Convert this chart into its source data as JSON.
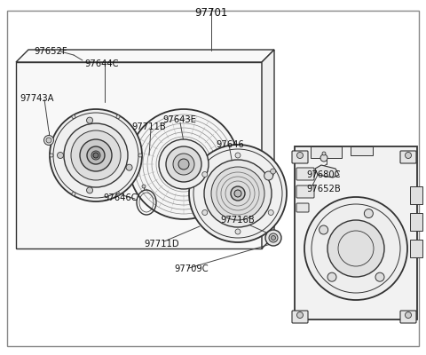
{
  "title": "97701",
  "bg_color": "#ffffff",
  "lc": "#333333",
  "lc2": "#555555",
  "figsize": [
    4.8,
    4.0
  ],
  "dpi": 100,
  "labels": [
    [
      "97701",
      238,
      10,
      "center"
    ],
    [
      "97652F",
      48,
      55,
      "left"
    ],
    [
      "97644C",
      98,
      68,
      "left"
    ],
    [
      "97743A",
      30,
      108,
      "left"
    ],
    [
      "97711B",
      152,
      140,
      "left"
    ],
    [
      "97643E",
      185,
      132,
      "left"
    ],
    [
      "97646C",
      120,
      215,
      "left"
    ],
    [
      "97646",
      245,
      158,
      "left"
    ],
    [
      "97711D",
      168,
      268,
      "left"
    ],
    [
      "97709C",
      200,
      298,
      "left"
    ],
    [
      "97716B",
      252,
      240,
      "left"
    ],
    [
      "97680C",
      352,
      195,
      "left"
    ],
    [
      "97652B",
      352,
      210,
      "left"
    ]
  ]
}
